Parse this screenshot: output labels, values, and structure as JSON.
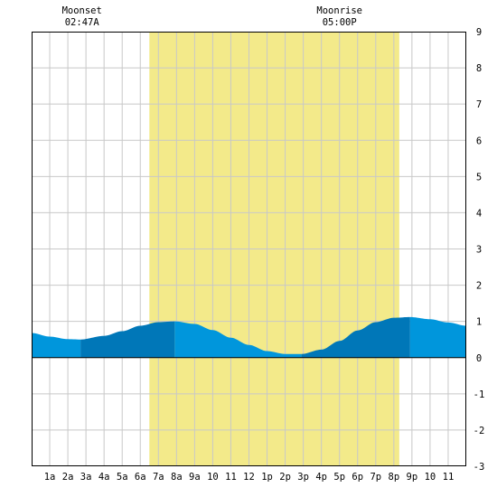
{
  "chart_data": {
    "type": "area",
    "title": "",
    "xlabel": "",
    "ylabel": "",
    "x_range_hours": [
      0,
      24
    ],
    "ylim": [
      -3,
      9
    ],
    "y_ticks": [
      "9",
      "8",
      "7",
      "6",
      "5",
      "4",
      "3",
      "2",
      "1",
      "0",
      "-1",
      "-2",
      "-3"
    ],
    "x_ticks": [
      {
        "hour": 1,
        "label": "1a"
      },
      {
        "hour": 2,
        "label": "2a"
      },
      {
        "hour": 3,
        "label": "3a"
      },
      {
        "hour": 4,
        "label": "4a"
      },
      {
        "hour": 5,
        "label": "5a"
      },
      {
        "hour": 6,
        "label": "6a"
      },
      {
        "hour": 7,
        "label": "7a"
      },
      {
        "hour": 8,
        "label": "8a"
      },
      {
        "hour": 9,
        "label": "9a"
      },
      {
        "hour": 10,
        "label": "10"
      },
      {
        "hour": 11,
        "label": "11"
      },
      {
        "hour": 12,
        "label": "12"
      },
      {
        "hour": 13,
        "label": "1p"
      },
      {
        "hour": 14,
        "label": "2p"
      },
      {
        "hour": 15,
        "label": "3p"
      },
      {
        "hour": 16,
        "label": "4p"
      },
      {
        "hour": 17,
        "label": "5p"
      },
      {
        "hour": 18,
        "label": "6p"
      },
      {
        "hour": 19,
        "label": "7p"
      },
      {
        "hour": 20,
        "label": "8p"
      },
      {
        "hour": 21,
        "label": "9p"
      },
      {
        "hour": 22,
        "label": "10"
      },
      {
        "hour": 23,
        "label": "11"
      }
    ],
    "grid": true,
    "daylight_hours": [
      6.5,
      20.3
    ],
    "tide_curve": {
      "hours": [
        0,
        1,
        2,
        2.7,
        4,
        5,
        6,
        7,
        7.9,
        9,
        10,
        11,
        12,
        13,
        14,
        14.9,
        16,
        17,
        18,
        19,
        20,
        20.9,
        22,
        23,
        24
      ],
      "heights": [
        0.68,
        0.58,
        0.51,
        0.5,
        0.6,
        0.73,
        0.88,
        0.98,
        1.0,
        0.93,
        0.76,
        0.55,
        0.35,
        0.18,
        0.1,
        0.1,
        0.22,
        0.46,
        0.75,
        0.98,
        1.1,
        1.12,
        1.06,
        0.97,
        0.88
      ]
    },
    "shading_bands": [
      {
        "from": 0,
        "to": 2.7,
        "shade": "light"
      },
      {
        "from": 2.7,
        "to": 7.9,
        "shade": "dark"
      },
      {
        "from": 7.9,
        "to": 14.9,
        "shade": "light"
      },
      {
        "from": 14.9,
        "to": 20.9,
        "shade": "dark"
      },
      {
        "from": 20.9,
        "to": 24,
        "shade": "light"
      }
    ],
    "annotations": [
      {
        "hour": 2.78,
        "line1": "Moonset",
        "line2": "02:47A"
      },
      {
        "hour": 17.0,
        "line1": "Moonrise",
        "line2": "05:00P"
      }
    ],
    "colors": {
      "daylight": "#f3ea8a",
      "water_light": "#0096dc",
      "water_dark": "#0077b8",
      "grid": "#c8c8c8",
      "border": "#000000"
    }
  }
}
